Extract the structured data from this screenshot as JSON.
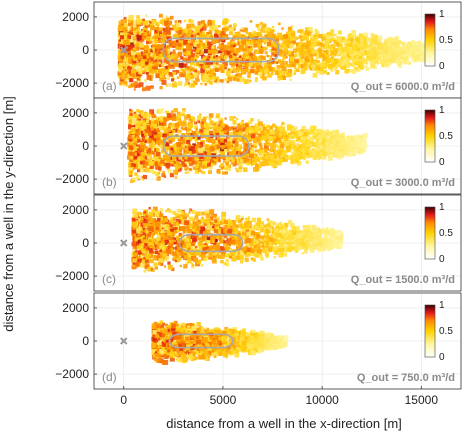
{
  "figure": {
    "xlabel": "distance from a well in the x-direction [m]",
    "ylabel": "distance from a well in the y-direction [m]",
    "x_ticks": [
      0,
      5000,
      10000,
      15000
    ],
    "y_ticks": [
      2000,
      0,
      -2000
    ],
    "colorbar_ticks": [
      1,
      0.5,
      0
    ]
  },
  "chart_data": [
    {
      "type": "heatmap",
      "panel_label": "(a)",
      "annotation": "Q_out = 6000.0 m³/d",
      "q_out_m3_per_day": 6000.0,
      "xlim": [
        -1500,
        17000
      ],
      "ylim": [
        -2900,
        2900
      ],
      "plume_extent": {
        "x_min": -200,
        "x_max": 15500,
        "y_min": -2500,
        "y_max": 2300
      },
      "outline_extent": {
        "x_min": 2000,
        "x_max": 7800,
        "y_min": -700,
        "y_max": 700
      },
      "colorbar_range": [
        0,
        1
      ]
    },
    {
      "type": "heatmap",
      "panel_label": "(b)",
      "annotation": "Q_out = 3000.0 m³/d",
      "q_out_m3_per_day": 3000.0,
      "xlim": [
        -1500,
        17000
      ],
      "ylim": [
        -2900,
        2900
      ],
      "plume_extent": {
        "x_min": 300,
        "x_max": 12200,
        "y_min": -2200,
        "y_max": 2400
      },
      "outline_extent": {
        "x_min": 2000,
        "x_max": 6300,
        "y_min": -600,
        "y_max": 600
      },
      "colorbar_range": [
        0,
        1
      ]
    },
    {
      "type": "heatmap",
      "panel_label": "(c)",
      "annotation": "Q_out = 1500.0 m³/d",
      "q_out_m3_per_day": 1500.0,
      "xlim": [
        -1500,
        17000
      ],
      "ylim": [
        -2900,
        2900
      ],
      "plume_extent": {
        "x_min": 500,
        "x_max": 11000,
        "y_min": -1800,
        "y_max": 2300
      },
      "outline_extent": {
        "x_min": 2800,
        "x_max": 6000,
        "y_min": -500,
        "y_max": 500
      },
      "colorbar_range": [
        0,
        1
      ]
    },
    {
      "type": "heatmap",
      "panel_label": "(d)",
      "annotation": "Q_out = 750.0 m³/d",
      "q_out_m3_per_day": 750.0,
      "xlim": [
        -1500,
        17000
      ],
      "ylim": [
        -2900,
        2900
      ],
      "plume_extent": {
        "x_min": 1500,
        "x_max": 8200,
        "y_min": -1400,
        "y_max": 1300
      },
      "outline_extent": {
        "x_min": 2300,
        "x_max": 5500,
        "y_min": -400,
        "y_max": 400
      },
      "colorbar_range": [
        0,
        1
      ]
    }
  ]
}
